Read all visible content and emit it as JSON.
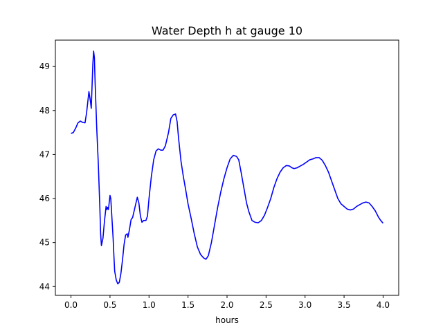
{
  "chart_data": {
    "type": "line",
    "title": "Water Depth h at gauge 10",
    "xlabel": "hours",
    "ylabel": "",
    "xlim": [
      -0.2,
      4.2
    ],
    "ylim": [
      43.8,
      49.6
    ],
    "xticks": [
      0.0,
      0.5,
      1.0,
      1.5,
      2.0,
      2.5,
      3.0,
      3.5,
      4.0
    ],
    "xtick_labels": [
      "0.0",
      "0.5",
      "1.0",
      "1.5",
      "2.0",
      "2.5",
      "3.0",
      "3.5",
      "4.0"
    ],
    "yticks": [
      44,
      45,
      46,
      47,
      48,
      49
    ],
    "ytick_labels": [
      "44",
      "45",
      "46",
      "47",
      "48",
      "49"
    ],
    "grid": false,
    "legend": "none",
    "series": [
      {
        "color": "#0000ff",
        "points": [
          [
            0.0,
            47.48
          ],
          [
            0.03,
            47.5
          ],
          [
            0.06,
            47.6
          ],
          [
            0.09,
            47.72
          ],
          [
            0.12,
            47.76
          ],
          [
            0.15,
            47.73
          ],
          [
            0.18,
            47.72
          ],
          [
            0.2,
            47.95
          ],
          [
            0.23,
            48.43
          ],
          [
            0.25,
            48.2
          ],
          [
            0.26,
            48.05
          ],
          [
            0.28,
            49.05
          ],
          [
            0.29,
            49.35
          ],
          [
            0.3,
            49.2
          ],
          [
            0.31,
            48.6
          ],
          [
            0.33,
            47.6
          ],
          [
            0.35,
            46.8
          ],
          [
            0.37,
            45.8
          ],
          [
            0.38,
            45.2
          ],
          [
            0.39,
            44.93
          ],
          [
            0.41,
            45.1
          ],
          [
            0.43,
            45.5
          ],
          [
            0.45,
            45.82
          ],
          [
            0.46,
            45.75
          ],
          [
            0.47,
            45.8
          ],
          [
            0.48,
            45.75
          ],
          [
            0.5,
            46.07
          ],
          [
            0.51,
            46.0
          ],
          [
            0.52,
            45.7
          ],
          [
            0.54,
            45.1
          ],
          [
            0.55,
            44.7
          ],
          [
            0.56,
            44.35
          ],
          [
            0.58,
            44.15
          ],
          [
            0.6,
            44.06
          ],
          [
            0.62,
            44.1
          ],
          [
            0.64,
            44.3
          ],
          [
            0.66,
            44.6
          ],
          [
            0.68,
            44.95
          ],
          [
            0.7,
            45.17
          ],
          [
            0.72,
            45.2
          ],
          [
            0.73,
            45.12
          ],
          [
            0.75,
            45.3
          ],
          [
            0.77,
            45.52
          ],
          [
            0.79,
            45.57
          ],
          [
            0.82,
            45.8
          ],
          [
            0.85,
            46.03
          ],
          [
            0.87,
            45.9
          ],
          [
            0.89,
            45.6
          ],
          [
            0.91,
            45.46
          ],
          [
            0.93,
            45.5
          ],
          [
            0.96,
            45.5
          ],
          [
            0.98,
            45.6
          ],
          [
            1.0,
            46.0
          ],
          [
            1.03,
            46.5
          ],
          [
            1.06,
            46.88
          ],
          [
            1.09,
            47.08
          ],
          [
            1.12,
            47.13
          ],
          [
            1.15,
            47.1
          ],
          [
            1.18,
            47.1
          ],
          [
            1.21,
            47.2
          ],
          [
            1.25,
            47.5
          ],
          [
            1.28,
            47.82
          ],
          [
            1.31,
            47.9
          ],
          [
            1.34,
            47.92
          ],
          [
            1.36,
            47.75
          ],
          [
            1.38,
            47.35
          ],
          [
            1.41,
            46.85
          ],
          [
            1.44,
            46.5
          ],
          [
            1.47,
            46.2
          ],
          [
            1.5,
            45.88
          ],
          [
            1.54,
            45.55
          ],
          [
            1.58,
            45.2
          ],
          [
            1.62,
            44.9
          ],
          [
            1.66,
            44.73
          ],
          [
            1.7,
            44.65
          ],
          [
            1.73,
            44.62
          ],
          [
            1.76,
            44.7
          ],
          [
            1.8,
            45.0
          ],
          [
            1.84,
            45.4
          ],
          [
            1.88,
            45.8
          ],
          [
            1.92,
            46.15
          ],
          [
            1.96,
            46.45
          ],
          [
            2.0,
            46.7
          ],
          [
            2.04,
            46.9
          ],
          [
            2.08,
            46.98
          ],
          [
            2.12,
            46.96
          ],
          [
            2.15,
            46.88
          ],
          [
            2.18,
            46.6
          ],
          [
            2.22,
            46.2
          ],
          [
            2.25,
            45.9
          ],
          [
            2.28,
            45.7
          ],
          [
            2.32,
            45.5
          ],
          [
            2.36,
            45.46
          ],
          [
            2.4,
            45.45
          ],
          [
            2.44,
            45.5
          ],
          [
            2.48,
            45.62
          ],
          [
            2.52,
            45.8
          ],
          [
            2.56,
            46.0
          ],
          [
            2.6,
            46.25
          ],
          [
            2.64,
            46.45
          ],
          [
            2.68,
            46.6
          ],
          [
            2.72,
            46.7
          ],
          [
            2.76,
            46.75
          ],
          [
            2.8,
            46.74
          ],
          [
            2.83,
            46.7
          ],
          [
            2.86,
            46.68
          ],
          [
            2.9,
            46.7
          ],
          [
            2.94,
            46.74
          ],
          [
            2.98,
            46.78
          ],
          [
            3.02,
            46.83
          ],
          [
            3.06,
            46.88
          ],
          [
            3.1,
            46.9
          ],
          [
            3.14,
            46.93
          ],
          [
            3.18,
            46.93
          ],
          [
            3.22,
            46.87
          ],
          [
            3.26,
            46.75
          ],
          [
            3.3,
            46.6
          ],
          [
            3.34,
            46.4
          ],
          [
            3.38,
            46.2
          ],
          [
            3.42,
            46.0
          ],
          [
            3.46,
            45.88
          ],
          [
            3.5,
            45.82
          ],
          [
            3.54,
            45.76
          ],
          [
            3.58,
            45.74
          ],
          [
            3.62,
            45.76
          ],
          [
            3.66,
            45.82
          ],
          [
            3.7,
            45.86
          ],
          [
            3.74,
            45.9
          ],
          [
            3.78,
            45.92
          ],
          [
            3.82,
            45.9
          ],
          [
            3.86,
            45.82
          ],
          [
            3.9,
            45.72
          ],
          [
            3.94,
            45.58
          ],
          [
            3.97,
            45.5
          ],
          [
            4.0,
            45.44
          ]
        ]
      }
    ]
  }
}
